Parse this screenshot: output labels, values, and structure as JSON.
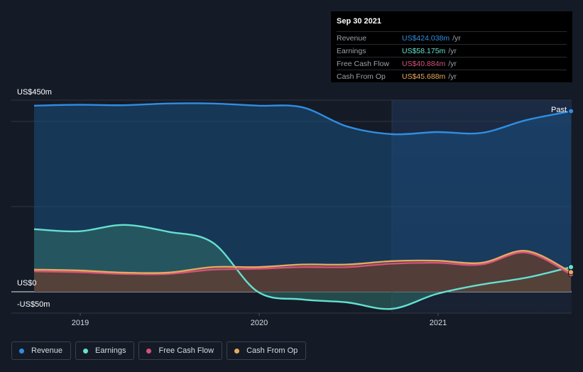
{
  "chart_data": {
    "type": "line",
    "x_start": 2018.75,
    "x_end": 2021.75,
    "xlim": [
      2018.75,
      2021.75
    ],
    "ylim": [
      -50,
      450
    ],
    "x_ticks": [
      {
        "value": 2019,
        "label": "2019"
      },
      {
        "value": 2020,
        "label": "2020"
      },
      {
        "value": 2021,
        "label": "2021"
      }
    ],
    "y_labels": [
      {
        "value": 450,
        "label": "US$450m"
      },
      {
        "value": 0,
        "label": "US$0"
      },
      {
        "value": -50,
        "label": "-US$50m"
      }
    ],
    "gridlines": [
      450,
      400,
      200,
      0,
      -50
    ],
    "past_start": 2020.75,
    "past_label": "Past",
    "series": [
      {
        "name": "Revenue",
        "color": "#2f8ee3",
        "fill": "#1a4f80",
        "x": [
          2018.75,
          2019.0,
          2019.25,
          2019.5,
          2019.75,
          2020.0,
          2020.25,
          2020.5,
          2020.75,
          2021.0,
          2021.25,
          2021.5,
          2021.75
        ],
        "values": [
          437,
          439,
          438,
          442,
          442,
          437,
          433,
          388,
          370,
          375,
          373,
          403,
          424
        ]
      },
      {
        "name": "Earnings",
        "color": "#65e0d0",
        "fill": "#2e6b66",
        "x": [
          2018.75,
          2019.0,
          2019.25,
          2019.5,
          2019.75,
          2020.0,
          2020.25,
          2020.5,
          2020.75,
          2021.0,
          2021.25,
          2021.5,
          2021.75
        ],
        "values": [
          147,
          142,
          157,
          141,
          115,
          0,
          -18,
          -25,
          -40,
          -5,
          17,
          33,
          58
        ]
      },
      {
        "name": "Free Cash Flow",
        "color": "#d3527a",
        "fill": "#5c2236",
        "x": [
          2018.75,
          2019.0,
          2019.25,
          2019.5,
          2019.75,
          2020.0,
          2020.25,
          2020.5,
          2020.75,
          2021.0,
          2021.25,
          2021.5,
          2021.75
        ],
        "values": [
          48,
          46,
          42,
          42,
          52,
          54,
          58,
          58,
          66,
          68,
          64,
          92,
          41
        ]
      },
      {
        "name": "Cash From Op",
        "color": "#e7a85f",
        "fill": "#5f4a31",
        "x": [
          2018.75,
          2019.0,
          2019.25,
          2019.5,
          2019.75,
          2020.0,
          2020.25,
          2020.5,
          2020.75,
          2021.0,
          2021.25,
          2021.5,
          2021.75
        ],
        "values": [
          52,
          50,
          45,
          45,
          58,
          58,
          64,
          64,
          72,
          73,
          68,
          96,
          46
        ]
      }
    ]
  },
  "tooltip": {
    "date": "Sep 30 2021",
    "rows": [
      {
        "label": "Revenue",
        "value": "US$424.038m",
        "unit": "/yr",
        "color": "#2f8ee3"
      },
      {
        "label": "Earnings",
        "value": "US$58.175m",
        "unit": "/yr",
        "color": "#65e0d0"
      },
      {
        "label": "Free Cash Flow",
        "value": "US$40.884m",
        "unit": "/yr",
        "color": "#d3527a"
      },
      {
        "label": "Cash From Op",
        "value": "US$45.688m",
        "unit": "/yr",
        "color": "#e7a85f"
      }
    ]
  },
  "legend": [
    {
      "label": "Revenue",
      "color": "#2f8ee3"
    },
    {
      "label": "Earnings",
      "color": "#65e0d0"
    },
    {
      "label": "Free Cash Flow",
      "color": "#d3527a"
    },
    {
      "label": "Cash From Op",
      "color": "#e7a85f"
    }
  ]
}
